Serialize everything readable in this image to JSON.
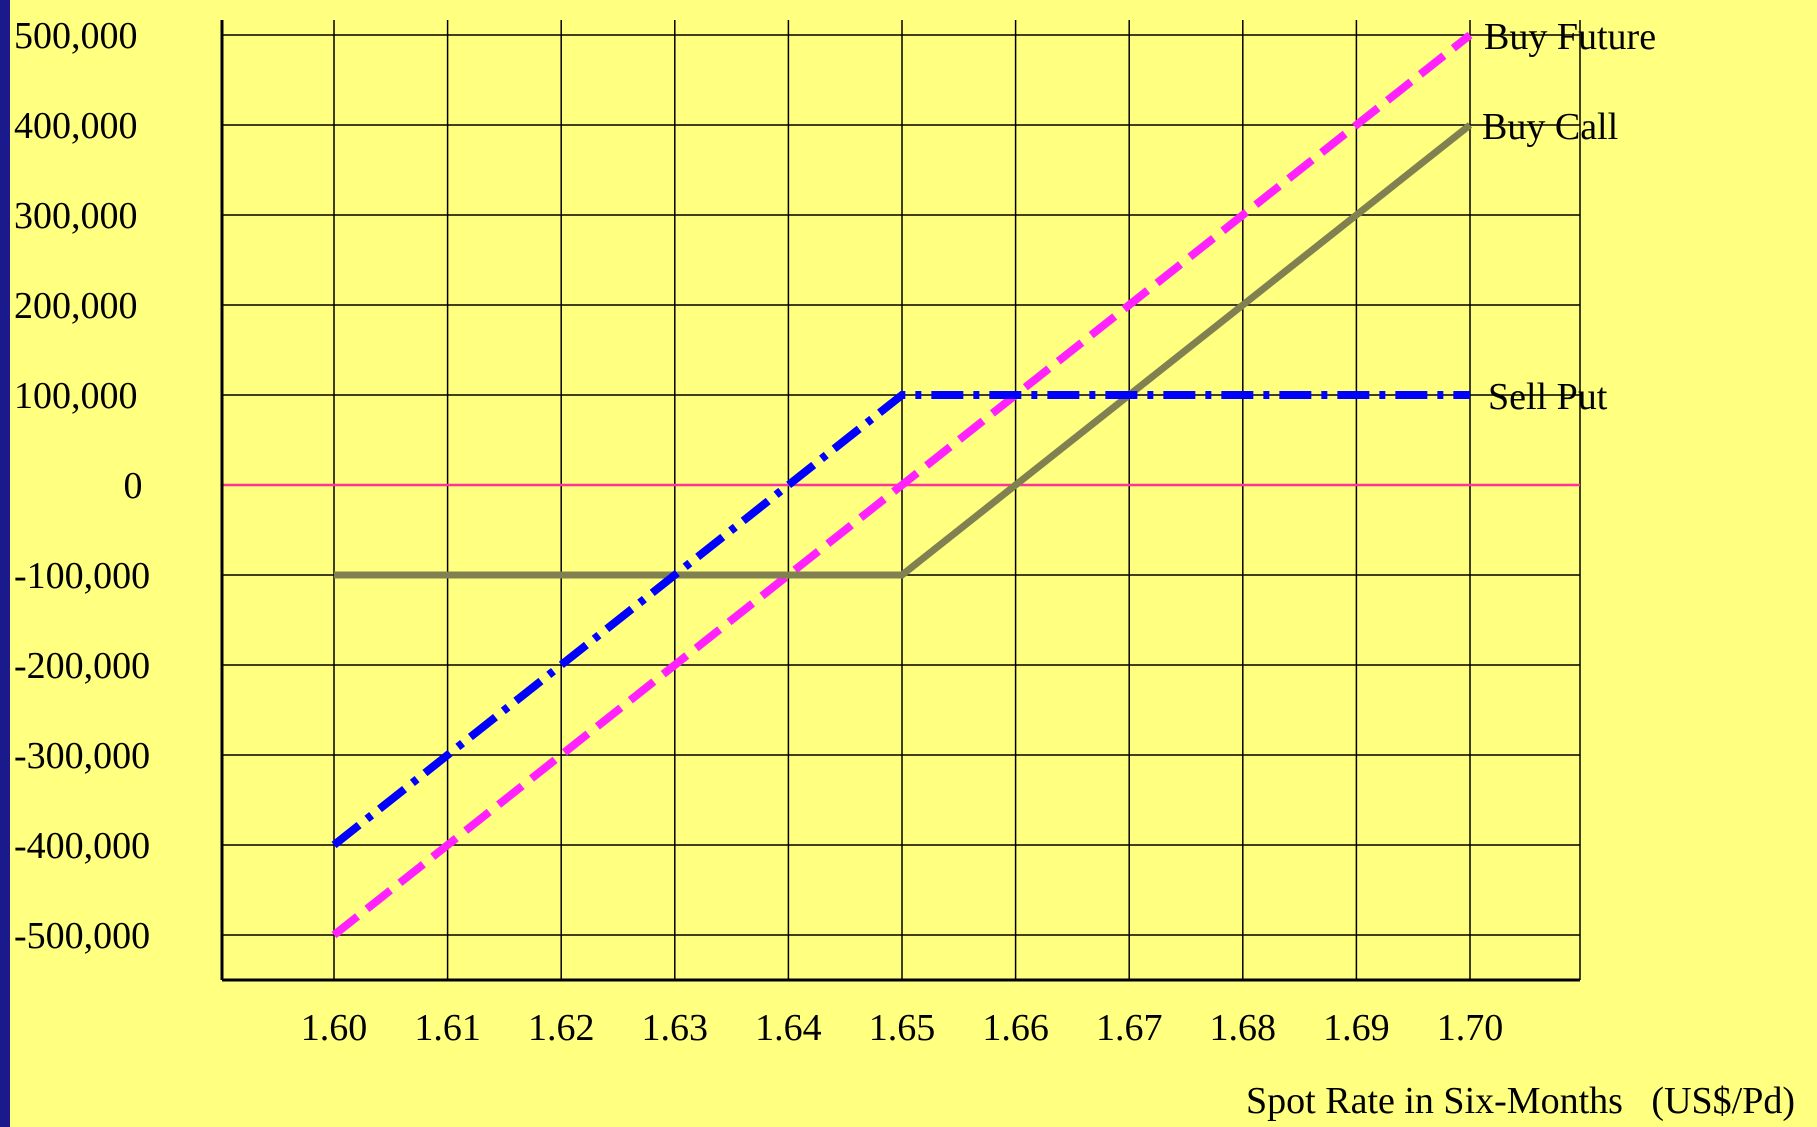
{
  "chart_data": {
    "type": "line",
    "title": "",
    "xlabel": "Spot Rate in Six-Months   (US$/Pd)",
    "ylabel": "",
    "x_ticks": [
      "1.60",
      "1.61",
      "1.62",
      "1.63",
      "1.64",
      "1.65",
      "1.66",
      "1.67",
      "1.68",
      "1.69",
      "1.70"
    ],
    "y_ticks": [
      "500,000",
      "400,000",
      "300,000",
      "200,000",
      "100,000",
      "0",
      "-100,000",
      "-200,000",
      "-300,000",
      "-400,000",
      "-500,000"
    ],
    "xlim": [
      1.59,
      1.71
    ],
    "ylim": [
      -540000,
      520000
    ],
    "grid": true,
    "legend": "labels at line ends",
    "zero_line_color": "#ff3399",
    "series": [
      {
        "name": "Buy Future",
        "color": "#ff22ff",
        "style": "dashed",
        "x": [
          1.6,
          1.7
        ],
        "y": [
          -500000,
          500000
        ]
      },
      {
        "name": "Buy Call",
        "color": "#808050",
        "style": "solid",
        "x": [
          1.6,
          1.65,
          1.7
        ],
        "y": [
          -100000,
          -100000,
          400000
        ]
      },
      {
        "name": "Sell Put",
        "color": "#0000ff",
        "style": "dash-dot",
        "x": [
          1.6,
          1.65,
          1.7
        ],
        "y": [
          -400000,
          100000,
          100000
        ]
      }
    ]
  }
}
